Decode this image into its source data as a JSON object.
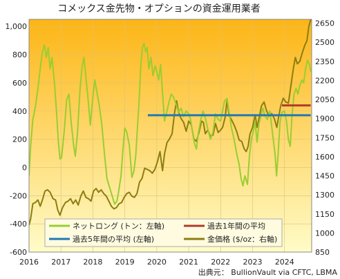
{
  "chart_data": {
    "type": "line",
    "title": "コメックス金先物・オプションの資金運用業者",
    "source": "出典元： BullionVault via CFTC, LBMA",
    "x_ticks": [
      "2016",
      "2017",
      "2018",
      "2019",
      "2020",
      "2021",
      "2022",
      "2023",
      "2024"
    ],
    "x_range": [
      2016.0,
      2024.85
    ],
    "y_left": {
      "ticks": [
        "1,000",
        "800",
        "600",
        "400",
        "200",
        "0",
        "-200",
        "-400",
        "-600"
      ],
      "range": [
        -600,
        1050
      ]
    },
    "y_right": {
      "ticks": [
        "2650",
        "2500",
        "2350",
        "2200",
        "2050",
        "1900",
        "1750",
        "1600",
        "1450",
        "1300",
        "1150",
        "1000",
        "850"
      ],
      "range": [
        850,
        2680
      ]
    },
    "background_gradient": [
      "#fdb515",
      "#fffcc8"
    ],
    "grid": true,
    "legend": {
      "placement": "bottom-left",
      "items": {
        "net_long": "ネットロング (トン：左軸)",
        "avg_1y": "過去1年間の平均",
        "avg_5y": "過去5年間の平均 (左軸)",
        "gold_price": "金価格 ($/oz：右軸)"
      }
    },
    "series": [
      {
        "name": "ネットロング (トン：左軸)",
        "axis": "left",
        "color": "#9acd32",
        "points": [
          [
            2016.0,
            -60
          ],
          [
            2016.05,
            150
          ],
          [
            2016.12,
            340
          ],
          [
            2016.2,
            430
          ],
          [
            2016.28,
            560
          ],
          [
            2016.35,
            700
          ],
          [
            2016.42,
            820
          ],
          [
            2016.48,
            870
          ],
          [
            2016.54,
            780
          ],
          [
            2016.6,
            850
          ],
          [
            2016.66,
            700
          ],
          [
            2016.72,
            780
          ],
          [
            2016.8,
            590
          ],
          [
            2016.86,
            400
          ],
          [
            2016.92,
            180
          ],
          [
            2016.97,
            60
          ],
          [
            2017.02,
            70
          ],
          [
            2017.1,
            250
          ],
          [
            2017.18,
            480
          ],
          [
            2017.25,
            520
          ],
          [
            2017.32,
            320
          ],
          [
            2017.4,
            150
          ],
          [
            2017.45,
            80
          ],
          [
            2017.52,
            250
          ],
          [
            2017.6,
            560
          ],
          [
            2017.66,
            710
          ],
          [
            2017.72,
            780
          ],
          [
            2017.78,
            640
          ],
          [
            2017.85,
            480
          ],
          [
            2017.92,
            300
          ],
          [
            2018.0,
            500
          ],
          [
            2018.06,
            620
          ],
          [
            2018.12,
            540
          ],
          [
            2018.2,
            440
          ],
          [
            2018.28,
            300
          ],
          [
            2018.36,
            100
          ],
          [
            2018.44,
            -80
          ],
          [
            2018.52,
            -140
          ],
          [
            2018.6,
            -200
          ],
          [
            2018.68,
            -260
          ],
          [
            2018.75,
            -240
          ],
          [
            2018.8,
            -180
          ],
          [
            2018.88,
            -60
          ],
          [
            2018.95,
            150
          ],
          [
            2019.0,
            280
          ],
          [
            2019.06,
            250
          ],
          [
            2019.14,
            160
          ],
          [
            2019.22,
            -70
          ],
          [
            2019.28,
            -30
          ],
          [
            2019.34,
            80
          ],
          [
            2019.4,
            300
          ],
          [
            2019.45,
            480
          ],
          [
            2019.5,
            730
          ],
          [
            2019.55,
            850
          ],
          [
            2019.6,
            880
          ],
          [
            2019.65,
            820
          ],
          [
            2019.7,
            850
          ],
          [
            2019.75,
            700
          ],
          [
            2019.82,
            780
          ],
          [
            2019.88,
            650
          ],
          [
            2019.95,
            720
          ],
          [
            2020.0,
            680
          ],
          [
            2020.06,
            620
          ],
          [
            2020.12,
            730
          ],
          [
            2020.18,
            530
          ],
          [
            2020.24,
            330
          ],
          [
            2020.3,
            380
          ],
          [
            2020.38,
            460
          ],
          [
            2020.45,
            520
          ],
          [
            2020.52,
            500
          ],
          [
            2020.6,
            450
          ],
          [
            2020.68,
            390
          ],
          [
            2020.76,
            420
          ],
          [
            2020.84,
            360
          ],
          [
            2020.92,
            400
          ],
          [
            2021.0,
            380
          ],
          [
            2021.06,
            340
          ],
          [
            2021.12,
            250
          ],
          [
            2021.18,
            170
          ],
          [
            2021.24,
            130
          ],
          [
            2021.3,
            240
          ],
          [
            2021.38,
            340
          ],
          [
            2021.45,
            400
          ],
          [
            2021.52,
            350
          ],
          [
            2021.6,
            270
          ],
          [
            2021.68,
            200
          ],
          [
            2021.76,
            250
          ],
          [
            2021.84,
            380
          ],
          [
            2021.92,
            340
          ],
          [
            2022.0,
            330
          ],
          [
            2022.06,
            400
          ],
          [
            2022.12,
            470
          ],
          [
            2022.2,
            490
          ],
          [
            2022.26,
            400
          ],
          [
            2022.34,
            280
          ],
          [
            2022.42,
            200
          ],
          [
            2022.5,
            100
          ],
          [
            2022.58,
            20
          ],
          [
            2022.64,
            -80
          ],
          [
            2022.7,
            -130
          ],
          [
            2022.76,
            -60
          ],
          [
            2022.84,
            -120
          ],
          [
            2022.9,
            80
          ],
          [
            2022.96,
            200
          ],
          [
            2023.02,
            250
          ],
          [
            2023.08,
            320
          ],
          [
            2023.14,
            180
          ],
          [
            2023.2,
            310
          ],
          [
            2023.26,
            360
          ],
          [
            2023.32,
            420
          ],
          [
            2023.38,
            370
          ],
          [
            2023.46,
            340
          ],
          [
            2023.54,
            400
          ],
          [
            2023.62,
            250
          ],
          [
            2023.7,
            100
          ],
          [
            2023.75,
            -60
          ],
          [
            2023.8,
            100
          ],
          [
            2023.86,
            320
          ],
          [
            2023.92,
            390
          ],
          [
            2024.0,
            400
          ],
          [
            2024.06,
            330
          ],
          [
            2024.12,
            200
          ],
          [
            2024.18,
            150
          ],
          [
            2024.24,
            380
          ],
          [
            2024.3,
            520
          ],
          [
            2024.36,
            560
          ],
          [
            2024.42,
            520
          ],
          [
            2024.48,
            580
          ],
          [
            2024.54,
            620
          ],
          [
            2024.6,
            600
          ],
          [
            2024.66,
            700
          ],
          [
            2024.72,
            760
          ],
          [
            2024.78,
            730
          ],
          [
            2024.82,
            680
          ]
        ]
      },
      {
        "name": "過去5年間の平均 (左軸)",
        "axis": "left",
        "color": "#1f78b4",
        "points": [
          [
            2019.72,
            370
          ],
          [
            2024.82,
            370
          ]
        ]
      },
      {
        "name": "過去1年間の平均",
        "axis": "left",
        "color": "#b23a2a",
        "points": [
          [
            2023.92,
            440
          ],
          [
            2024.82,
            440
          ]
        ]
      },
      {
        "name": "金価格 ($/oz：右軸)",
        "axis": "right",
        "color": "#8b7d12",
        "points": [
          [
            2016.0,
            1060
          ],
          [
            2016.05,
            1110
          ],
          [
            2016.12,
            1230
          ],
          [
            2016.2,
            1240
          ],
          [
            2016.28,
            1260
          ],
          [
            2016.35,
            1210
          ],
          [
            2016.42,
            1260
          ],
          [
            2016.5,
            1330
          ],
          [
            2016.58,
            1340
          ],
          [
            2016.66,
            1320
          ],
          [
            2016.75,
            1270
          ],
          [
            2016.83,
            1260
          ],
          [
            2016.9,
            1180
          ],
          [
            2016.97,
            1140
          ],
          [
            2017.05,
            1200
          ],
          [
            2017.14,
            1240
          ],
          [
            2017.22,
            1250
          ],
          [
            2017.3,
            1270
          ],
          [
            2017.38,
            1230
          ],
          [
            2017.46,
            1260
          ],
          [
            2017.54,
            1220
          ],
          [
            2017.62,
            1290
          ],
          [
            2017.7,
            1330
          ],
          [
            2017.78,
            1280
          ],
          [
            2017.86,
            1270
          ],
          [
            2017.94,
            1250
          ],
          [
            2018.02,
            1330
          ],
          [
            2018.1,
            1350
          ],
          [
            2018.18,
            1320
          ],
          [
            2018.26,
            1340
          ],
          [
            2018.34,
            1310
          ],
          [
            2018.42,
            1290
          ],
          [
            2018.5,
            1250
          ],
          [
            2018.58,
            1210
          ],
          [
            2018.66,
            1190
          ],
          [
            2018.74,
            1200
          ],
          [
            2018.82,
            1230
          ],
          [
            2018.9,
            1240
          ],
          [
            2018.98,
            1280
          ],
          [
            2019.06,
            1310
          ],
          [
            2019.14,
            1320
          ],
          [
            2019.22,
            1290
          ],
          [
            2019.3,
            1280
          ],
          [
            2019.38,
            1310
          ],
          [
            2019.46,
            1400
          ],
          [
            2019.54,
            1430
          ],
          [
            2019.62,
            1510
          ],
          [
            2019.7,
            1500
          ],
          [
            2019.78,
            1490
          ],
          [
            2019.86,
            1470
          ],
          [
            2019.94,
            1500
          ],
          [
            2020.02,
            1560
          ],
          [
            2020.1,
            1640
          ],
          [
            2020.18,
            1490
          ],
          [
            2020.24,
            1620
          ],
          [
            2020.32,
            1710
          ],
          [
            2020.4,
            1740
          ],
          [
            2020.48,
            1780
          ],
          [
            2020.56,
            1950
          ],
          [
            2020.62,
            2040
          ],
          [
            2020.68,
            1950
          ],
          [
            2020.76,
            1900
          ],
          [
            2020.84,
            1870
          ],
          [
            2020.92,
            1800
          ],
          [
            2021.0,
            1880
          ],
          [
            2021.08,
            1850
          ],
          [
            2021.16,
            1740
          ],
          [
            2021.24,
            1720
          ],
          [
            2021.32,
            1790
          ],
          [
            2021.4,
            1880
          ],
          [
            2021.46,
            1870
          ],
          [
            2021.52,
            1780
          ],
          [
            2021.6,
            1810
          ],
          [
            2021.68,
            1760
          ],
          [
            2021.76,
            1770
          ],
          [
            2021.84,
            1860
          ],
          [
            2021.92,
            1790
          ],
          [
            2022.0,
            1810
          ],
          [
            2022.06,
            1830
          ],
          [
            2022.14,
            1910
          ],
          [
            2022.2,
            2040
          ],
          [
            2022.26,
            1930
          ],
          [
            2022.34,
            1890
          ],
          [
            2022.42,
            1850
          ],
          [
            2022.5,
            1800
          ],
          [
            2022.58,
            1730
          ],
          [
            2022.66,
            1720
          ],
          [
            2022.74,
            1660
          ],
          [
            2022.8,
            1640
          ],
          [
            2022.86,
            1680
          ],
          [
            2022.92,
            1780
          ],
          [
            2023.0,
            1830
          ],
          [
            2023.08,
            1930
          ],
          [
            2023.14,
            1830
          ],
          [
            2023.2,
            1900
          ],
          [
            2023.28,
            2000
          ],
          [
            2023.36,
            2030
          ],
          [
            2023.44,
            1960
          ],
          [
            2023.52,
            1920
          ],
          [
            2023.6,
            1940
          ],
          [
            2023.68,
            1900
          ],
          [
            2023.76,
            1830
          ],
          [
            2023.82,
            1920
          ],
          [
            2023.88,
            2000
          ],
          [
            2023.96,
            2060
          ],
          [
            2024.04,
            2030
          ],
          [
            2024.12,
            2020
          ],
          [
            2024.2,
            2160
          ],
          [
            2024.28,
            2300
          ],
          [
            2024.34,
            2380
          ],
          [
            2024.4,
            2330
          ],
          [
            2024.48,
            2350
          ],
          [
            2024.56,
            2420
          ],
          [
            2024.64,
            2480
          ],
          [
            2024.7,
            2510
          ],
          [
            2024.76,
            2620
          ],
          [
            2024.82,
            2680
          ]
        ]
      }
    ]
  }
}
